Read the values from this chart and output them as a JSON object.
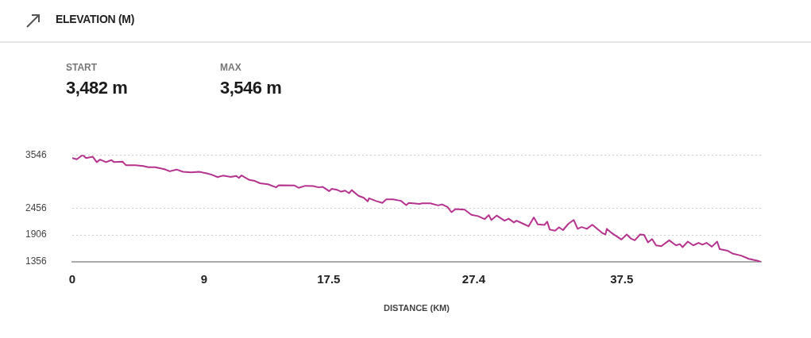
{
  "chart_data": {
    "type": "line",
    "title": "ELEVATION (M)",
    "xlabel": "DISTANCE (KM)",
    "annotations": [
      "START",
      "3,482 m",
      "MAX",
      "3,546 m"
    ],
    "x": [
      0,
      0.31,
      0.71,
      0.94,
      1.4,
      1.67,
      1.9,
      2.3,
      2.67,
      2.85,
      3.43,
      3.66,
      4.3,
      4.84,
      5.2,
      5.66,
      6.29,
      6.65,
      7.11,
      7.56,
      8.1,
      8.65,
      9.19,
      9.55,
      9.92,
      10.28,
      10.82,
      11.19,
      11.37,
      11.55,
      12.09,
      12.46,
      12.82,
      13.36,
      13.91,
      14.09,
      15.17,
      15.45,
      15.9,
      16.44,
      16.81,
      17.08,
      17.53,
      17.71,
      18.08,
      18.35,
      18.62,
      18.89,
      19.07,
      19.53,
      19.89,
      20.16,
      20.25,
      20.7,
      21.16,
      21.43,
      21.88,
      22.43,
      22.79,
      22.97,
      23.7,
      23.88,
      24.43,
      24.97,
      25.24,
      25.61,
      25.88,
      26.15,
      26.78,
      27.24,
      27.69,
      28.14,
      28.42,
      28.6,
      28.96,
      29.5,
      29.78,
      30.14,
      30.32,
      30.77,
      31.14,
      31.5,
      31.77,
      32.22,
      32.41,
      32.59,
      32.95,
      33.22,
      33.49,
      33.86,
      34.22,
      34.49,
      34.76,
      35.12,
      35.49,
      36.21,
      36.39,
      36.48,
      36.85,
      37.48,
      37.84,
      38.12,
      38.39,
      38.75,
      39.02,
      39.29,
      39.57,
      39.84,
      40.2,
      40.74,
      41.2,
      41.47,
      41.65,
      42.01,
      42.38,
      42.74,
      43.01,
      43.28,
      43.65,
      44.01,
      44.19,
      44.73,
      45.1,
      45.64,
      46.18,
      46.73,
      47
    ],
    "series": [
      {
        "color": "#b5338f",
        "values": [
          3482,
          3455,
          3546,
          3481,
          3507,
          3397,
          3450,
          3397,
          3439,
          3397,
          3408,
          3335,
          3335,
          3319,
          3293,
          3293,
          3252,
          3210,
          3246,
          3199,
          3189,
          3199,
          3168,
          3137,
          3090,
          3121,
          3095,
          3116,
          3074,
          3126,
          3033,
          3012,
          2965,
          2944,
          2881,
          2923,
          2918,
          2871,
          2913,
          2907,
          2881,
          2892,
          2803,
          2850,
          2829,
          2793,
          2814,
          2761,
          2824,
          2709,
          2668,
          2595,
          2657,
          2605,
          2563,
          2636,
          2636,
          2605,
          2516,
          2563,
          2543,
          2553,
          2553,
          2511,
          2532,
          2480,
          2371,
          2438,
          2423,
          2318,
          2292,
          2230,
          2313,
          2214,
          2303,
          2198,
          2240,
          2162,
          2198,
          2136,
          2084,
          2266,
          2125,
          2110,
          2178,
          2016,
          1995,
          2063,
          2006,
          2136,
          2214,
          2032,
          2068,
          2032,
          2115,
          1938,
          1917,
          2032,
          1938,
          1813,
          1917,
          1834,
          1797,
          1917,
          1907,
          1755,
          1823,
          1693,
          1677,
          1797,
          1693,
          1719,
          1656,
          1771,
          1693,
          1745,
          1708,
          1745,
          1667,
          1771,
          1615,
          1583,
          1521,
          1484,
          1417,
          1380,
          1356
        ]
      }
    ],
    "xlim": [
      0,
      47
    ],
    "xticks": [
      0,
      9,
      17.5,
      27.4,
      37.5
    ],
    "ylim": [
      1356,
      3546
    ],
    "yticks": [
      1356,
      1906,
      2456,
      3546
    ],
    "grid": "y",
    "legend": false,
    "marker": "none",
    "line_style": "solid"
  }
}
